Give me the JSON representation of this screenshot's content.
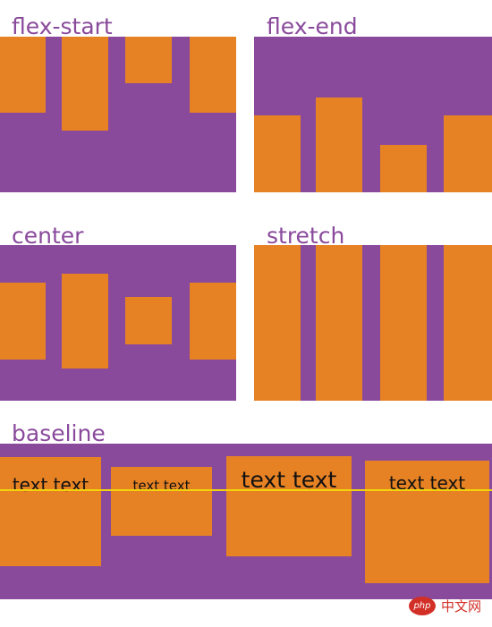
{
  "colors": {
    "container": "#894a9b",
    "item": "#e78224",
    "label": "#8a4a9c",
    "baseline": "#f2d40a"
  },
  "panels": {
    "flex_start": {
      "label": "flex-start"
    },
    "flex_end": {
      "label": "flex-end"
    },
    "center": {
      "label": "center"
    },
    "stretch": {
      "label": "stretch"
    },
    "baseline": {
      "label": "baseline",
      "items": [
        "text text",
        "text text",
        "text text",
        "text text"
      ]
    }
  },
  "watermark": {
    "logo": "php",
    "text": "中文网"
  }
}
